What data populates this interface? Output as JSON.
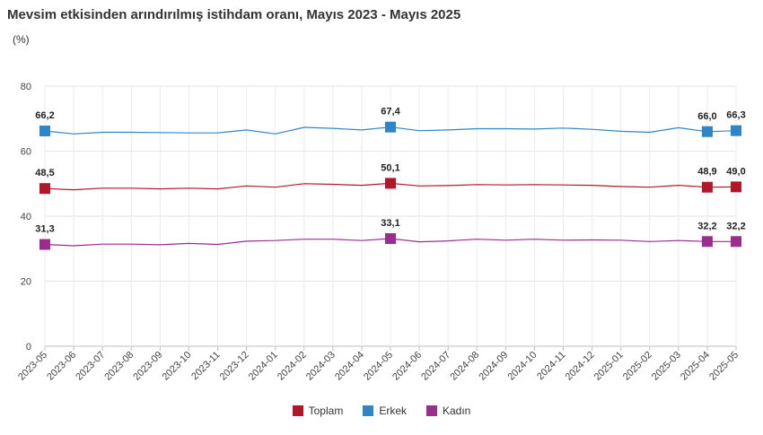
{
  "chart_data": {
    "type": "line",
    "title": "Mevsim etkisinden arındırılmış istihdam oranı, Mayıs 2023 - Mayıs 2025",
    "unit_label": "(%)",
    "xlabel": "",
    "ylabel": "",
    "ylim": [
      0,
      80
    ],
    "yticks": [
      0,
      20,
      40,
      60,
      80
    ],
    "grid": true,
    "legend_position": "bottom",
    "categories": [
      "2023-05",
      "2023-06",
      "2023-07",
      "2023-08",
      "2023-09",
      "2023-10",
      "2023-11",
      "2023-12",
      "2024-01",
      "2024-02",
      "2024-03",
      "2024-04",
      "2024-05",
      "2024-06",
      "2024-07",
      "2024-08",
      "2024-09",
      "2024-10",
      "2024-11",
      "2024-12",
      "2025-01",
      "2025-02",
      "2025-03",
      "2025-04",
      "2025-05"
    ],
    "series": [
      {
        "name": "Toplam",
        "color": "#b0172a",
        "values": [
          48.5,
          48.1,
          48.6,
          48.6,
          48.4,
          48.6,
          48.4,
          49.3,
          48.9,
          50.0,
          49.8,
          49.5,
          50.1,
          49.3,
          49.4,
          49.7,
          49.6,
          49.7,
          49.6,
          49.5,
          49.1,
          48.9,
          49.5,
          48.9,
          49.0
        ],
        "labels": [
          {
            "index": 0,
            "text": "48,5"
          },
          {
            "index": 12,
            "text": "50,1"
          },
          {
            "index": 23,
            "text": "48,9"
          },
          {
            "index": 24,
            "text": "49,0"
          }
        ]
      },
      {
        "name": "Erkek",
        "color": "#2e86c8",
        "values": [
          66.2,
          65.3,
          65.8,
          65.8,
          65.7,
          65.6,
          65.6,
          66.5,
          65.3,
          67.3,
          67.0,
          66.5,
          67.4,
          66.3,
          66.5,
          66.9,
          66.9,
          66.8,
          67.1,
          66.7,
          66.1,
          65.8,
          67.2,
          66.0,
          66.3
        ],
        "labels": [
          {
            "index": 0,
            "text": "66,2"
          },
          {
            "index": 12,
            "text": "67,4"
          },
          {
            "index": 23,
            "text": "66,0"
          },
          {
            "index": 24,
            "text": "66,3"
          }
        ]
      },
      {
        "name": "Kadın",
        "color": "#9b2d8e",
        "values": [
          31.3,
          30.9,
          31.4,
          31.4,
          31.2,
          31.6,
          31.3,
          32.3,
          32.5,
          32.9,
          32.9,
          32.5,
          33.1,
          32.1,
          32.4,
          32.9,
          32.6,
          32.9,
          32.6,
          32.7,
          32.6,
          32.2,
          32.5,
          32.2,
          32.2
        ],
        "labels": [
          {
            "index": 0,
            "text": "31,3"
          },
          {
            "index": 12,
            "text": "33,1"
          },
          {
            "index": 23,
            "text": "32,2"
          },
          {
            "index": 24,
            "text": "32,2"
          }
        ]
      }
    ]
  }
}
